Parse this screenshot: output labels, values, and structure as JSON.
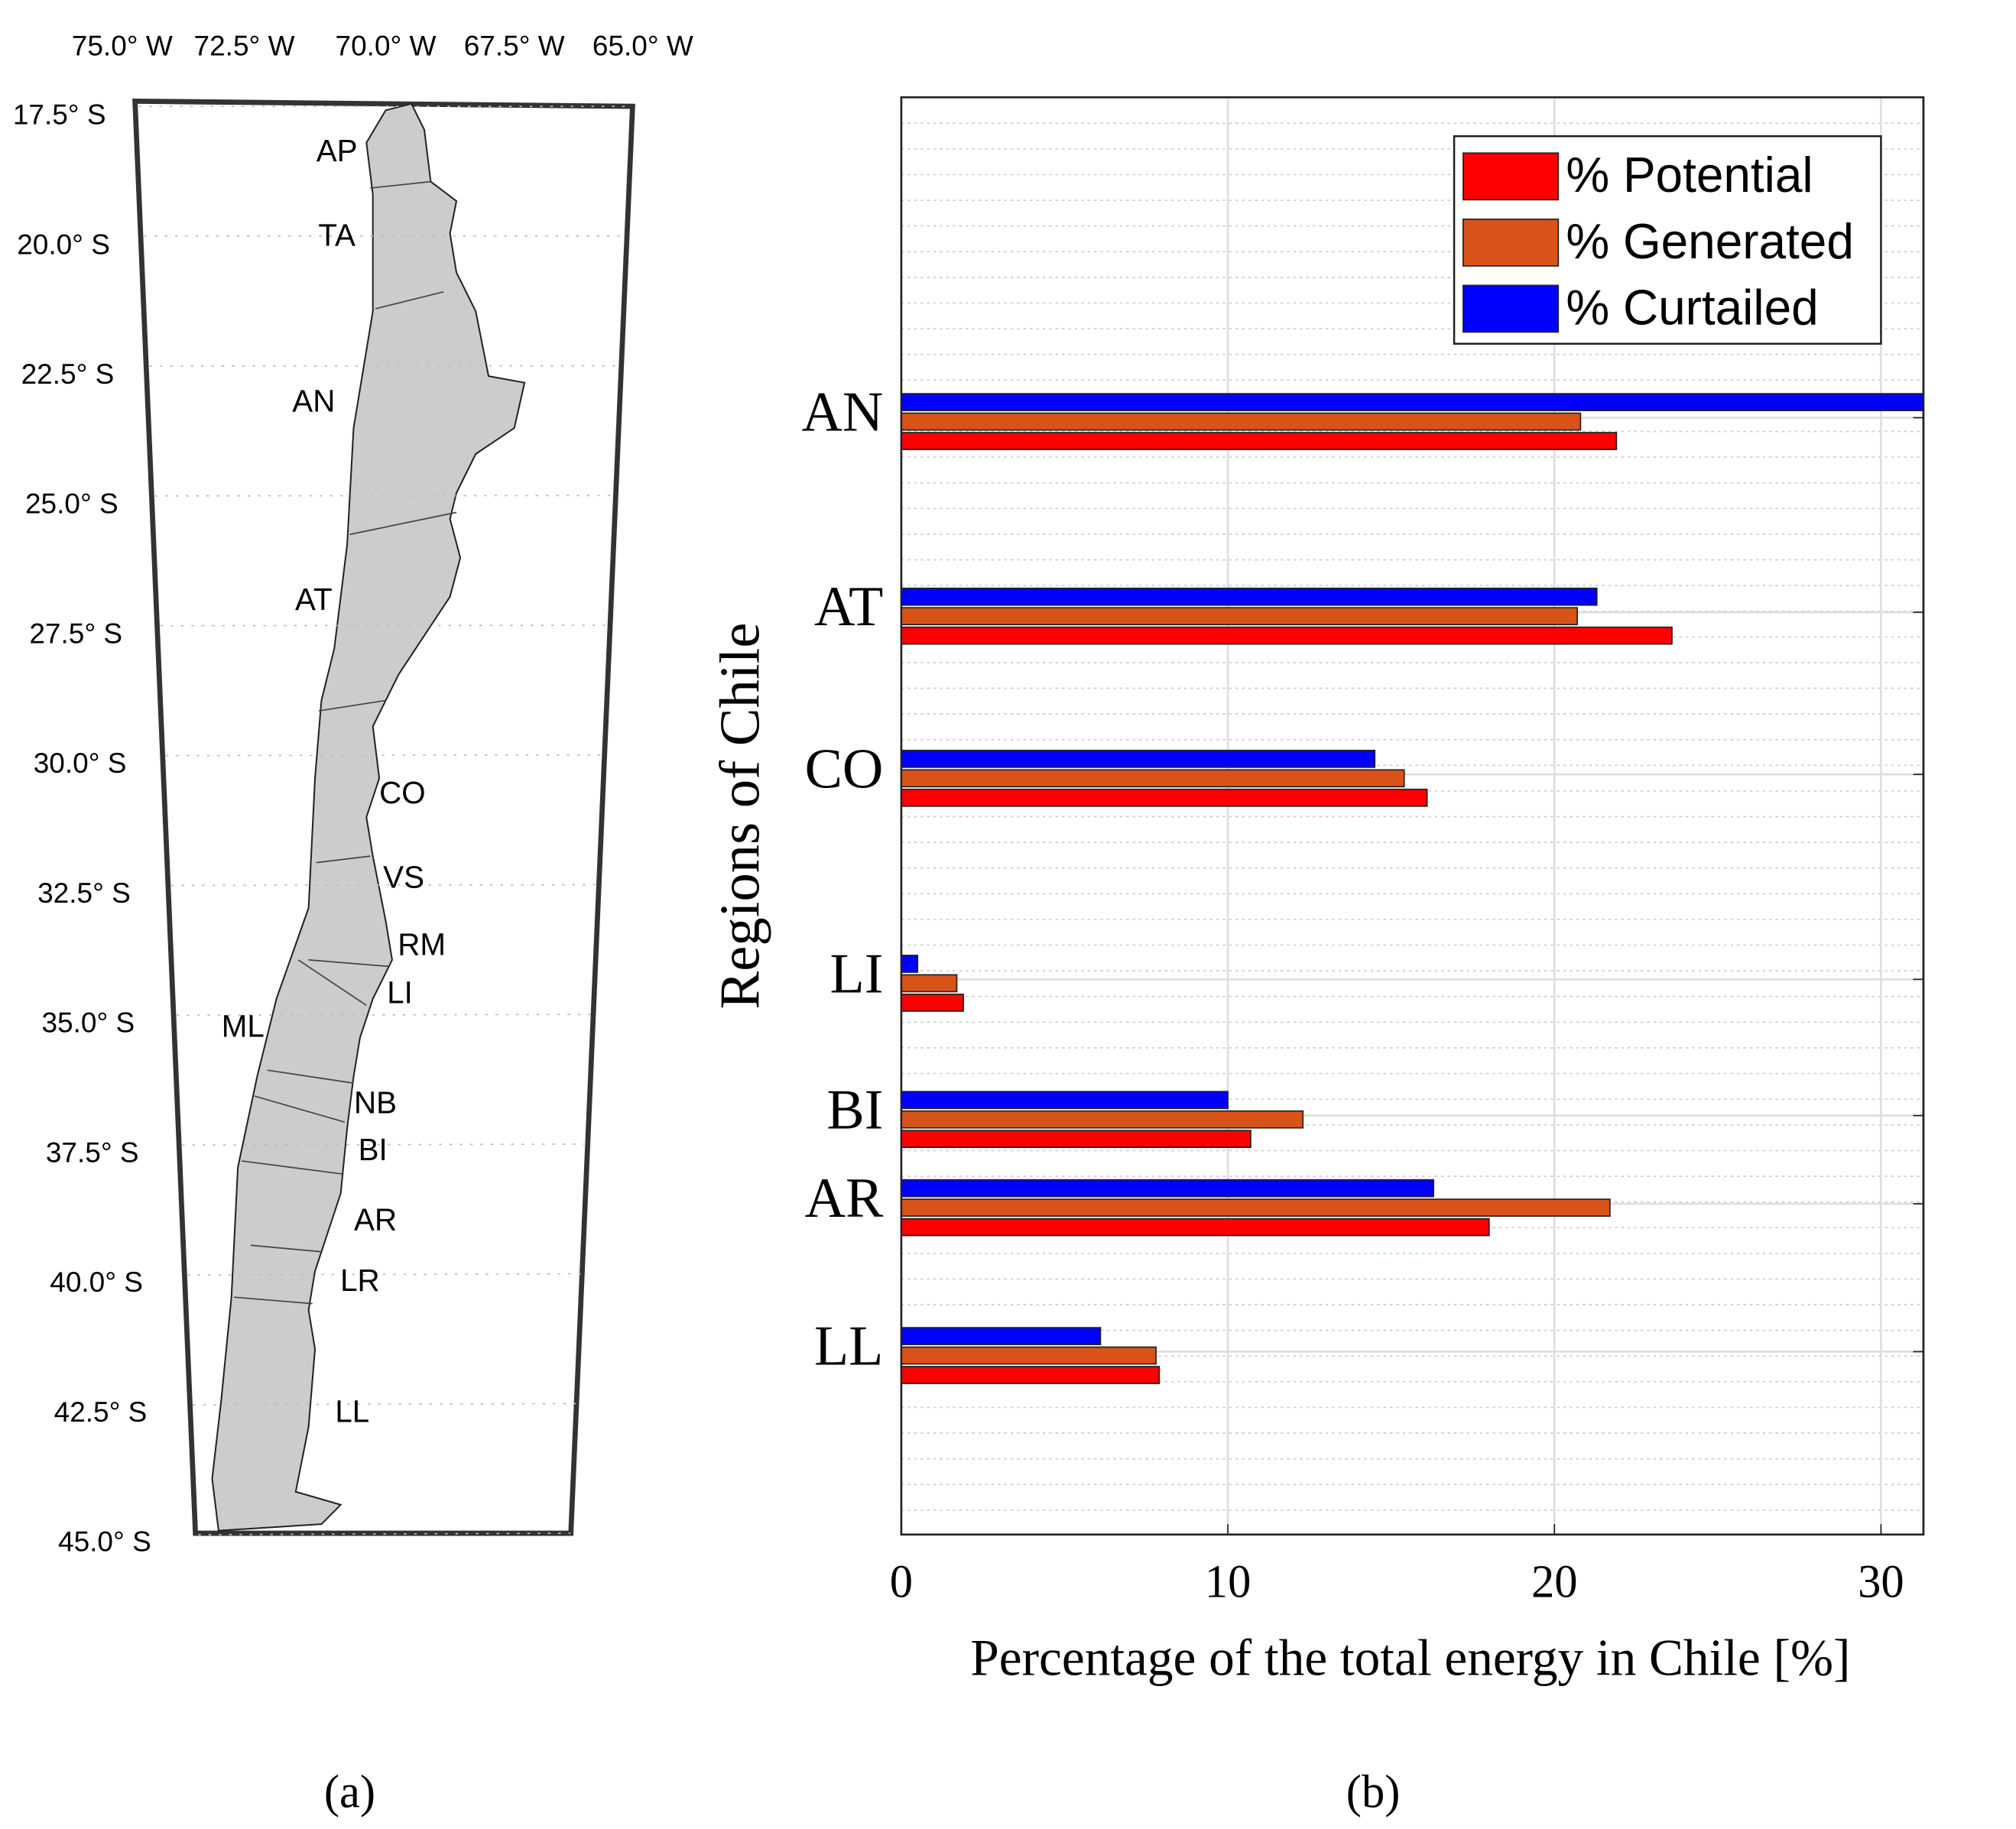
{
  "map": {
    "lon_labels": [
      "75.0° W",
      "72.5° W",
      "70.0° W",
      "67.5° W",
      "65.0° W"
    ],
    "lat_labels": [
      "17.5° S",
      "20.0° S",
      "22.5° S",
      "25.0° S",
      "27.5° S",
      "30.0° S",
      "32.5° S",
      "35.0° S",
      "37.5° S",
      "40.0° S",
      "42.5° S",
      "45.0° S"
    ],
    "regions": [
      "AP",
      "TA",
      "AN",
      "AT",
      "CO",
      "VS",
      "RM",
      "LI",
      "ML",
      "NB",
      "BI",
      "AR",
      "LR",
      "LL"
    ]
  },
  "panel_labels": [
    "(a)",
    "(b)"
  ],
  "chart_data": {
    "type": "bar",
    "orientation": "horizontal",
    "x_label": "Percentage of the total energy in Chile [%]",
    "y_label": "Regions of Chile",
    "categories": [
      "AN",
      "AT",
      "CO",
      "LI",
      "BI",
      "AR",
      "LL"
    ],
    "series": [
      {
        "name": "% Potential",
        "color": "#ff0000",
        "values": [
          21.9,
          23.6,
          16.1,
          1.9,
          10.7,
          18.0,
          7.9
        ]
      },
      {
        "name": "% Generated",
        "color": "#d95319",
        "values": [
          20.8,
          20.7,
          15.4,
          1.7,
          12.3,
          21.7,
          7.8
        ]
      },
      {
        "name": "% Curtailed",
        "color": "#0000ff",
        "values": [
          31.3,
          21.3,
          14.5,
          0.5,
          10.0,
          16.3,
          6.1
        ]
      }
    ],
    "xlim": [
      0,
      31.3
    ],
    "xticks": [
      0,
      10,
      20,
      30
    ],
    "grid": true,
    "legend": "top-right"
  }
}
